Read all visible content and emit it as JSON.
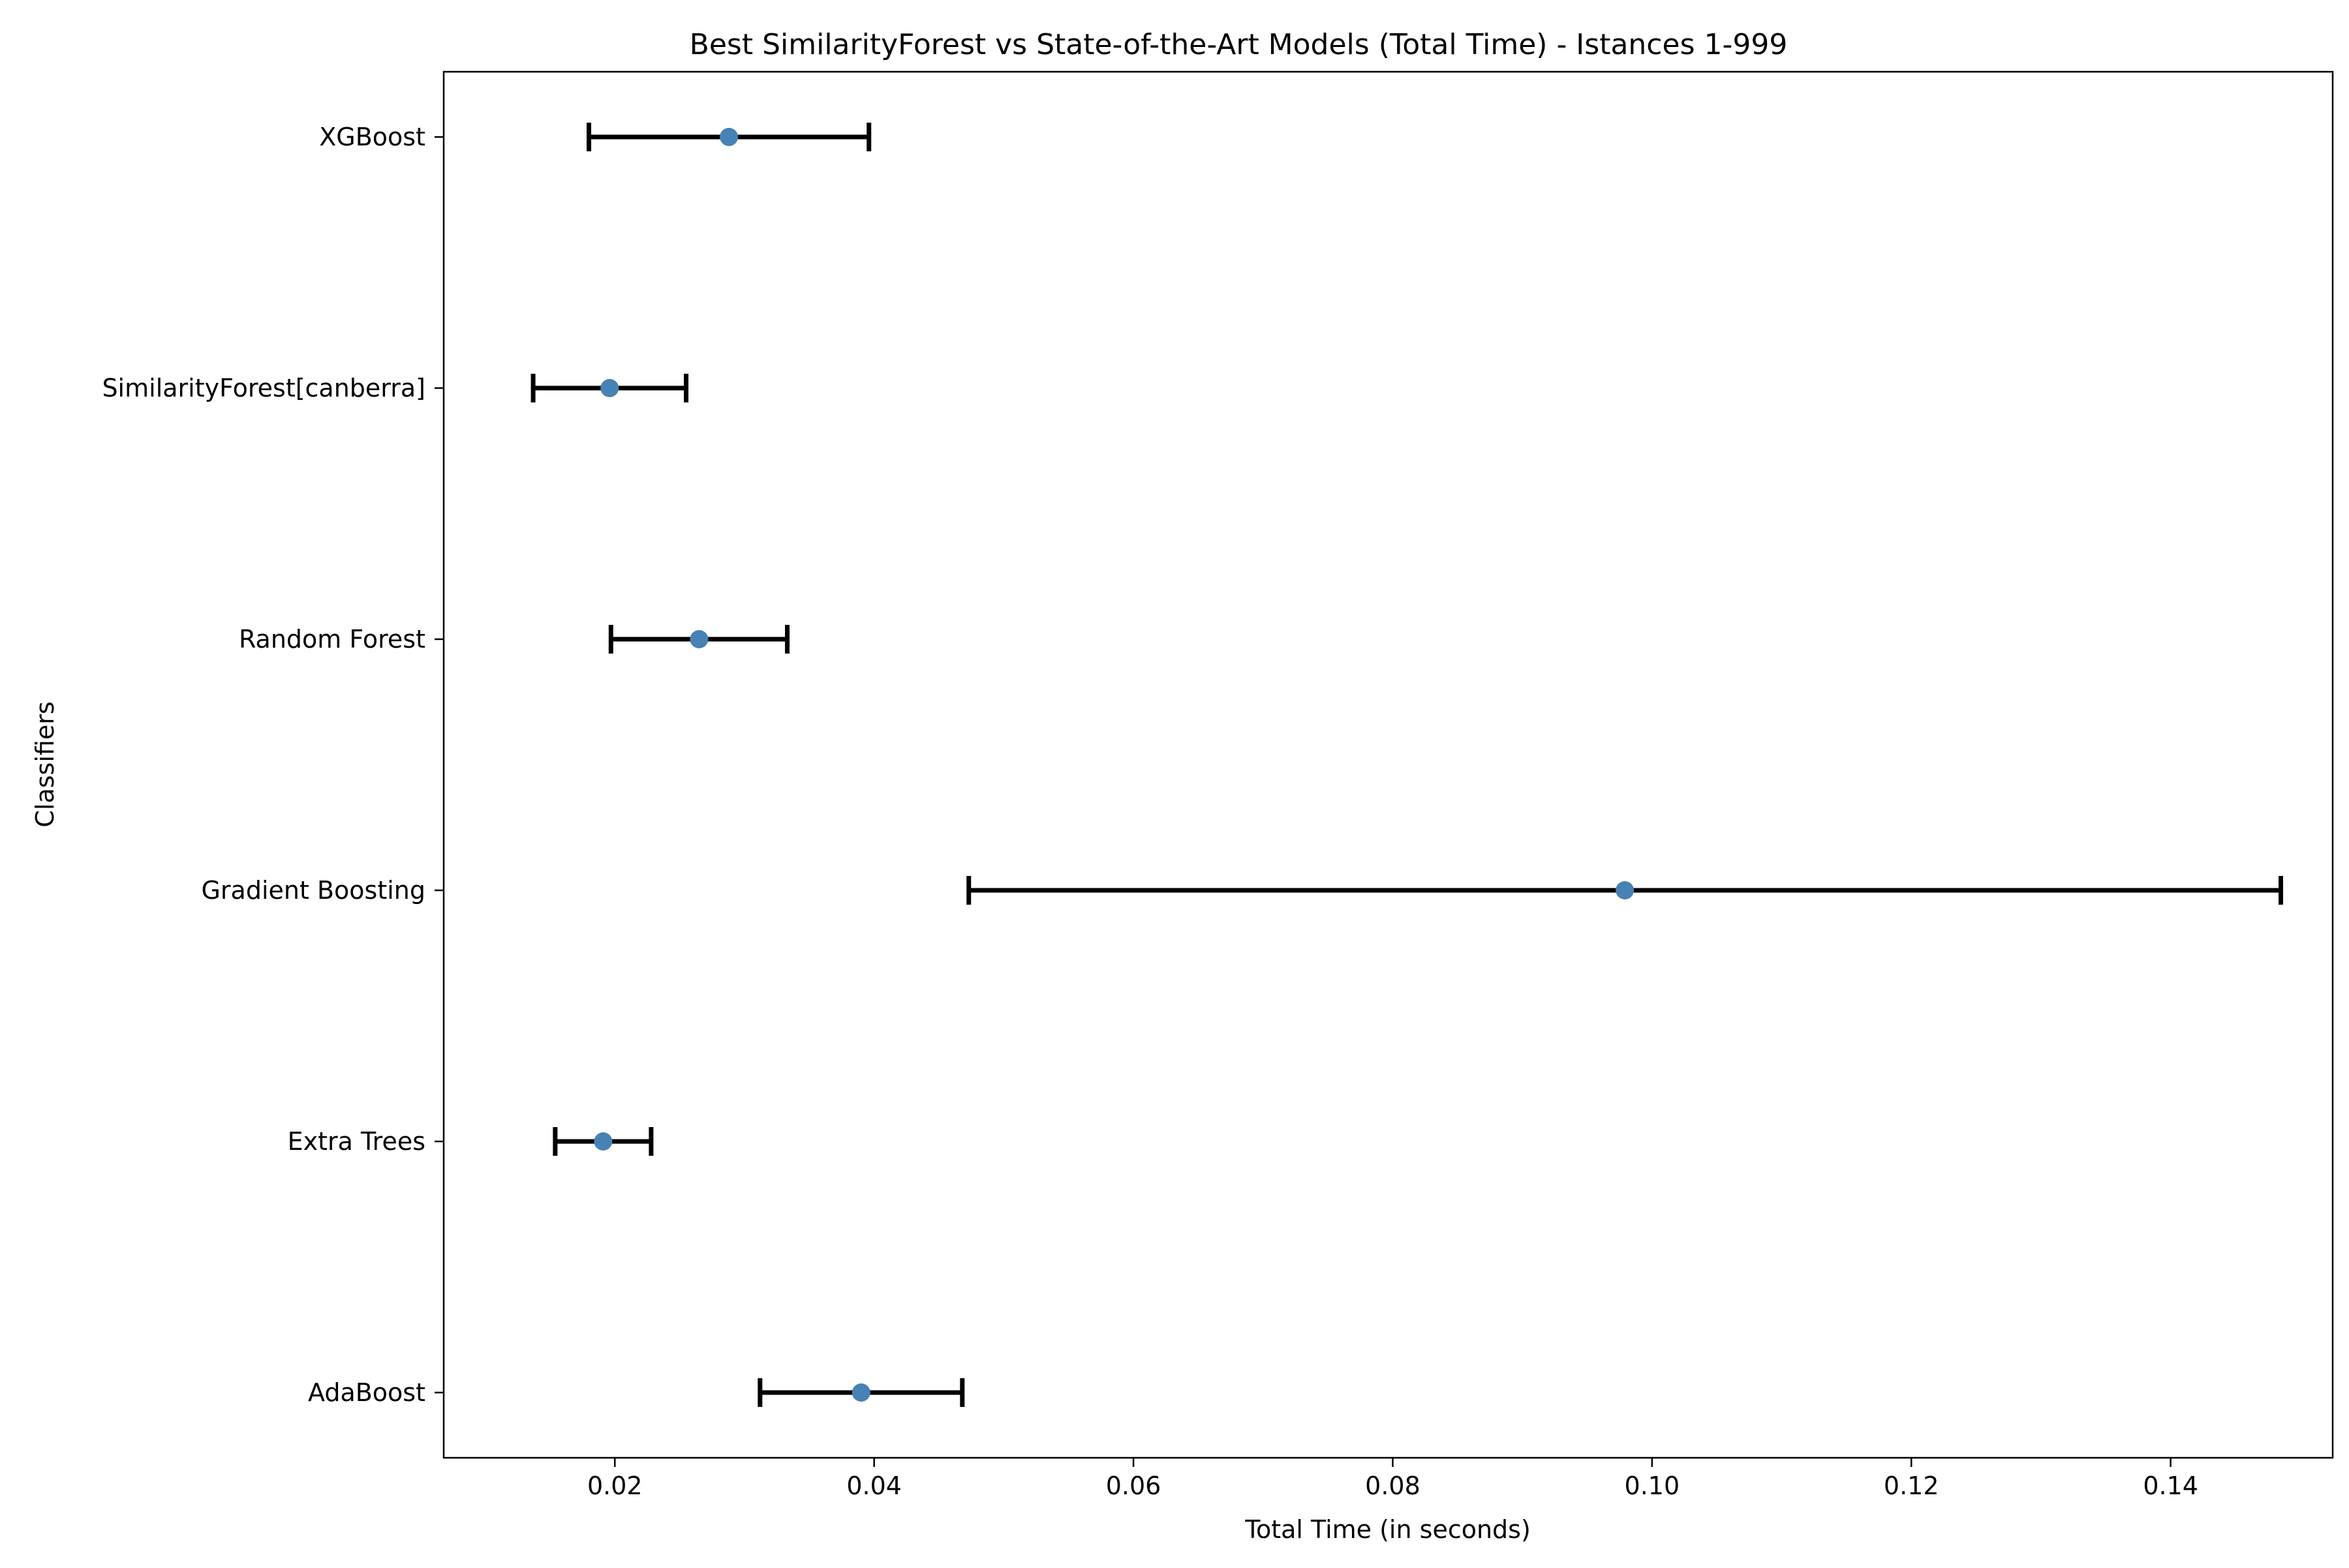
{
  "chart_data": {
    "type": "errorbar",
    "orientation": "horizontal",
    "title": "Best SimilarityForest vs State-of-the-Art Models (Total Time) - Istances 1-999",
    "xlabel": "Total Time (in seconds)",
    "ylabel": "Classifiers",
    "xlim": [
      0.0068,
      0.1525
    ],
    "xticks": [
      0.02,
      0.04,
      0.06,
      0.08,
      0.1,
      0.12,
      0.14
    ],
    "xtick_labels": [
      "0.02",
      "0.04",
      "0.06",
      "0.08",
      "0.10",
      "0.12",
      "0.14"
    ],
    "categories": [
      "AdaBoost",
      "Extra Trees",
      "Gradient Boosting",
      "Random Forest",
      "SimilarityForest[canberra]",
      "XGBoost"
    ],
    "values": [
      0.039,
      0.0191,
      0.0979,
      0.0265,
      0.0196,
      0.0288
    ],
    "errors": [
      0.0078,
      0.0037,
      0.0506,
      0.0068,
      0.0059,
      0.0108
    ],
    "grid": false,
    "colors": {
      "marker": "#4682b4",
      "errorbar": "#000000"
    }
  }
}
